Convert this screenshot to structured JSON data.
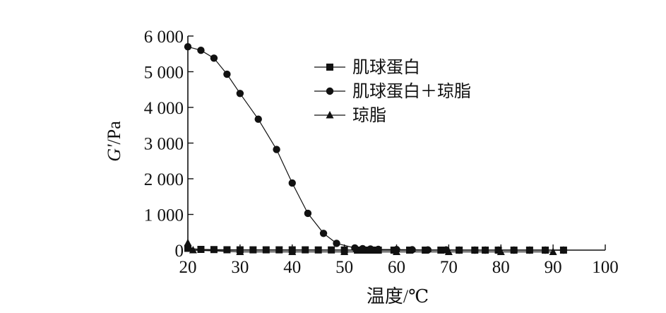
{
  "chart_data": {
    "type": "line",
    "title": "",
    "xlabel": "温度/℃",
    "ylabel": {
      "italic": "G'",
      "unit": "/Pa"
    },
    "xlim": [
      20,
      100
    ],
    "ylim": [
      0,
      6000
    ],
    "xticks": [
      20,
      30,
      40,
      50,
      60,
      70,
      80,
      90,
      100
    ],
    "xtick_labels": [
      "20",
      "30",
      "40",
      "50",
      "60",
      "70",
      "80",
      "90",
      "100"
    ],
    "yticks": [
      0,
      1000,
      2000,
      3000,
      4000,
      5000,
      6000
    ],
    "ytick_labels": [
      "0",
      "1 000",
      "2 000",
      "3 000",
      "4 000",
      "5 000",
      "6 000"
    ],
    "grid": false,
    "legend_position": "top-center",
    "series": [
      {
        "name": "肌球蛋白",
        "marker": "square",
        "points": [
          [
            20,
            50
          ],
          [
            22.5,
            20
          ],
          [
            25,
            15
          ],
          [
            27.5,
            10
          ],
          [
            30,
            8
          ],
          [
            32.5,
            8
          ],
          [
            35,
            8
          ],
          [
            37.5,
            8
          ],
          [
            40,
            8
          ],
          [
            42.5,
            8
          ],
          [
            45,
            5
          ],
          [
            47.5,
            5
          ],
          [
            50,
            3
          ],
          [
            52.5,
            0
          ],
          [
            53.5,
            0
          ],
          [
            54.5,
            0
          ],
          [
            55.5,
            0
          ],
          [
            56.5,
            0
          ],
          [
            59.5,
            0
          ],
          [
            62.5,
            0
          ],
          [
            65.5,
            0
          ],
          [
            68.5,
            0
          ],
          [
            72,
            0
          ],
          [
            75,
            0
          ],
          [
            77,
            0
          ],
          [
            79.5,
            0
          ],
          [
            82.5,
            0
          ],
          [
            85.5,
            0
          ],
          [
            88.5,
            0
          ],
          [
            92,
            0
          ]
        ]
      },
      {
        "name": "肌球蛋白＋琼脂",
        "marker": "circle",
        "points": [
          [
            20,
            5700
          ],
          [
            22.5,
            5600
          ],
          [
            25,
            5380
          ],
          [
            27.5,
            4930
          ],
          [
            30,
            4390
          ],
          [
            33.5,
            3670
          ],
          [
            37,
            2820
          ],
          [
            40,
            1880
          ],
          [
            43,
            1030
          ],
          [
            46,
            470
          ],
          [
            48.5,
            190
          ],
          [
            52,
            60
          ],
          [
            53.5,
            40
          ],
          [
            55,
            30
          ],
          [
            56.5,
            20
          ],
          [
            60,
            15
          ],
          [
            63,
            10
          ],
          [
            66,
            5
          ],
          [
            69.5,
            5
          ],
          [
            72,
            0
          ],
          [
            75,
            0
          ],
          [
            77,
            0
          ],
          [
            79.5,
            0
          ],
          [
            82.5,
            0
          ],
          [
            85.5,
            0
          ],
          [
            88.5,
            0
          ],
          [
            92,
            0
          ]
        ]
      },
      {
        "name": "琼脂",
        "marker": "triangle",
        "points": [
          [
            20,
            200
          ],
          [
            21,
            0
          ],
          [
            30,
            -50
          ],
          [
            40,
            -50
          ],
          [
            50,
            -50
          ],
          [
            60,
            -50
          ],
          [
            70,
            -50
          ],
          [
            80,
            -50
          ],
          [
            90,
            -50
          ]
        ]
      }
    ]
  }
}
